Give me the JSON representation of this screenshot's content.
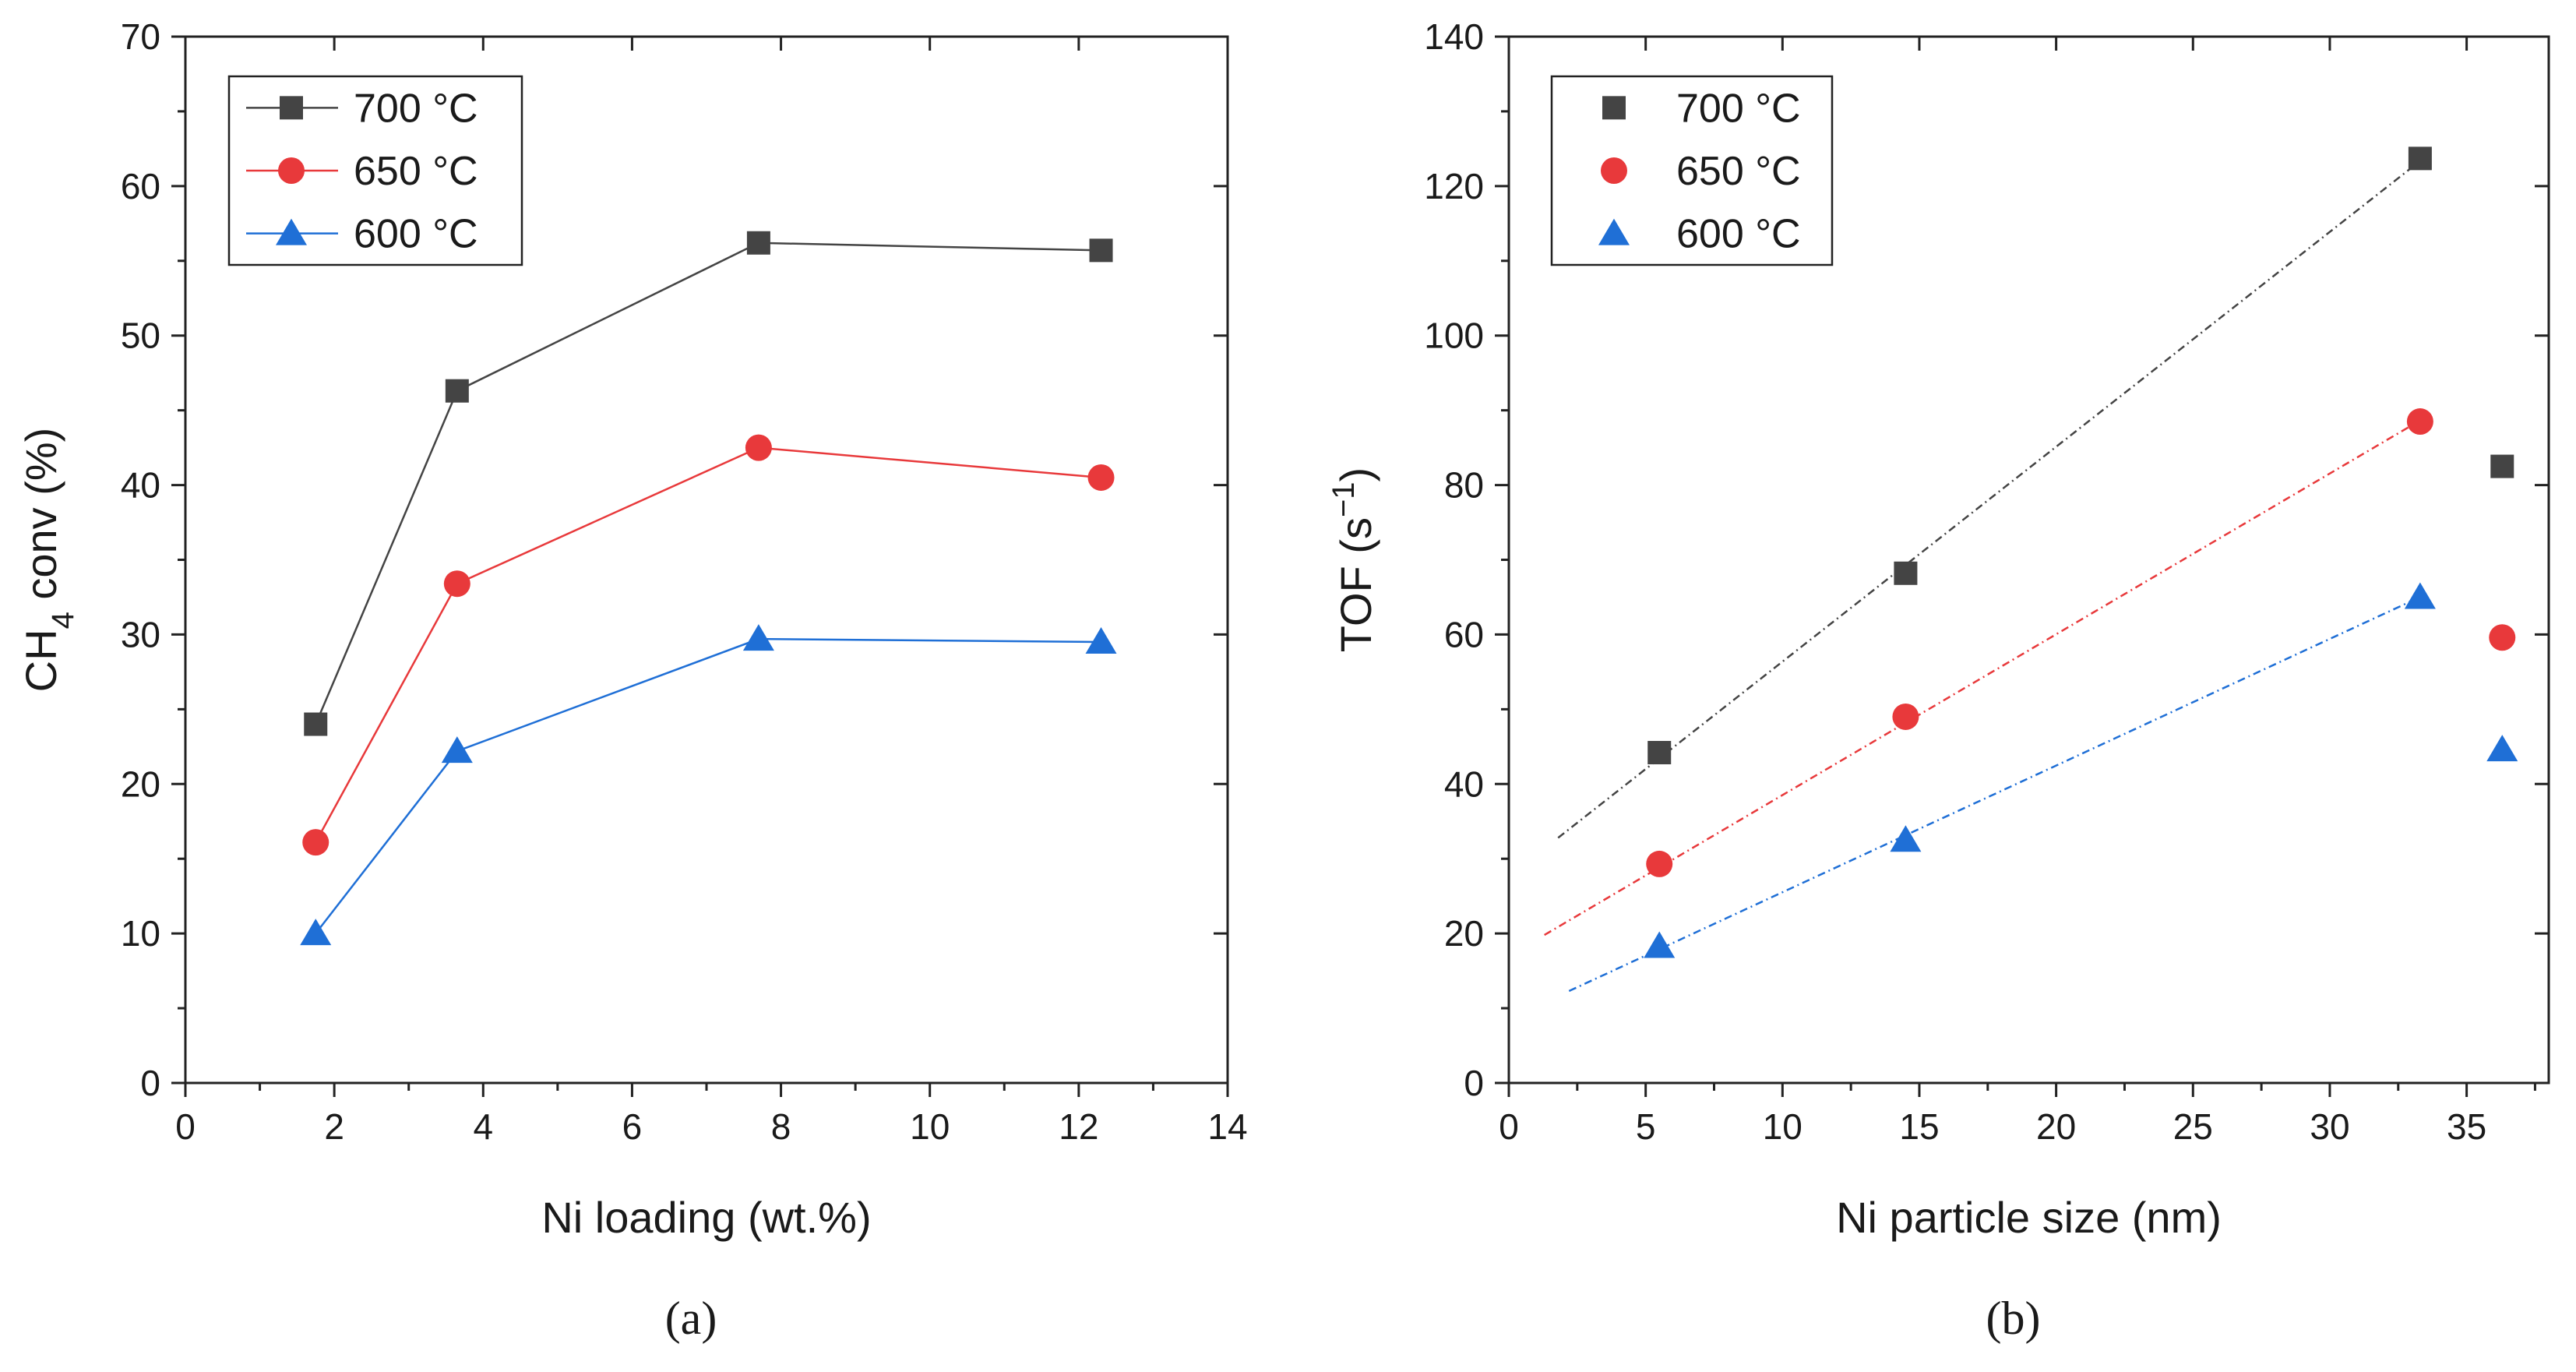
{
  "chart_data": [
    {
      "panel": "(a)",
      "type": "line",
      "xlabel": "Ni loading (wt.%)",
      "ylabel_main": "CH",
      "ylabel_sub": "4",
      "ylabel_rest": " conv (%)",
      "xlim": [
        0,
        14
      ],
      "ylim": [
        0,
        70
      ],
      "xticks": [
        0,
        2,
        4,
        6,
        8,
        10,
        12,
        14
      ],
      "yticks": [
        0,
        10,
        20,
        30,
        40,
        50,
        60,
        70
      ],
      "legend_position": "top-left",
      "series": [
        {
          "name": "700 °C",
          "color": "#444444",
          "marker": "square",
          "x": [
            1.75,
            3.65,
            7.7,
            12.3
          ],
          "y": [
            24.0,
            46.3,
            56.2,
            55.7
          ]
        },
        {
          "name": "650 °C",
          "color": "#e8393b",
          "marker": "circle",
          "x": [
            1.75,
            3.65,
            7.7,
            12.3
          ],
          "y": [
            16.1,
            33.4,
            42.5,
            40.5
          ]
        },
        {
          "name": "600 °C",
          "color": "#1f6fd6",
          "marker": "triangle",
          "x": [
            1.75,
            3.65,
            7.7,
            12.3
          ],
          "y": [
            10.0,
            22.2,
            29.7,
            29.5
          ]
        }
      ]
    },
    {
      "panel": "(b)",
      "type": "scatter",
      "xlabel": "Ni particle size (nm)",
      "ylabel_main": "TOF (s",
      "ylabel_sup": "−1",
      "ylabel_rest": ")",
      "xlim": [
        0,
        38
      ],
      "ylim": [
        0,
        140
      ],
      "xticks": [
        0,
        5,
        10,
        15,
        20,
        25,
        30,
        35
      ],
      "yticks": [
        0,
        20,
        40,
        60,
        80,
        100,
        120,
        140
      ],
      "legend_position": "top-left",
      "series": [
        {
          "name": "700 °C",
          "color": "#444444",
          "marker": "square",
          "x": [
            5.5,
            14.5,
            33.3,
            36.3
          ],
          "y": [
            44.2,
            68.2,
            123.7,
            82.5
          ],
          "fit": {
            "x": [
              1.8,
              33.0
            ],
            "y": [
              32.8,
              122.5
            ]
          }
        },
        {
          "name": "650 °C",
          "color": "#e8393b",
          "marker": "circle",
          "x": [
            5.5,
            14.5,
            33.3,
            36.3
          ],
          "y": [
            29.3,
            49.0,
            88.5,
            59.6
          ],
          "fit": {
            "x": [
              1.3,
              33.0
            ],
            "y": [
              19.8,
              88.0
            ]
          }
        },
        {
          "name": "600 °C",
          "color": "#1f6fd6",
          "marker": "triangle",
          "x": [
            5.5,
            14.5,
            33.3,
            36.3
          ],
          "y": [
            18.3,
            32.5,
            65.0,
            44.6
          ],
          "fit": {
            "x": [
              2.2,
              33.0
            ],
            "y": [
              12.3,
              64.5
            ]
          }
        }
      ]
    }
  ]
}
